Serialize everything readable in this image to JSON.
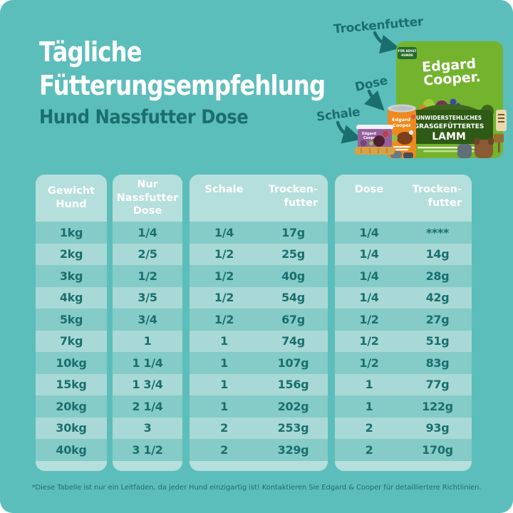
{
  "page": {
    "title_line1": "Tägliche",
    "title_line2": "Fütterungsempfehlung",
    "subtitle": "Hund Nassfutter Dose",
    "footnote": "*Diese Tabelle ist nur ein Leitfaden, da jeder Hund einzigartig ist! Kontaktieren Sie Edgard & Cooper für detailliertere Richtlinien.",
    "colors": {
      "background": "#5cbeba",
      "panel": "#b5dfdc",
      "row_dark": "#85cbc7",
      "row_light": "#a8d9d6",
      "ink": "#1a6f6e",
      "bag_green": "#74b32e",
      "can_orange": "#ee8a1e",
      "tray_purple": "#96609f",
      "tray_gold": "#d7a243"
    }
  },
  "product_callouts": {
    "dry_label": "Trockenfutter",
    "can_label": "Dose",
    "tray_label": "Schale"
  },
  "bag": {
    "badge_line1": "FÜR ADULT",
    "badge_line2": "HUNDE",
    "brand_line1": "Edgard",
    "brand_line2": "Cooper.",
    "claim_line1": "UNWIDERSTEHLICHES",
    "claim_line2": "GRASGEFÜTTERTES",
    "claim_line3": "LAMM"
  },
  "can": {
    "brand_line1": "Edgard",
    "brand_line2": "Cooper"
  },
  "tray": {
    "brand_line1": "Edgard",
    "brand_line2": "Cooper"
  },
  "table": {
    "group_headers": {
      "weight": "Gewicht\nHund",
      "wet_only": "Nur\nNassfutter\nDose",
      "tray": "Schale",
      "tray_dry": "Trocken-\nfutter",
      "can": "Dose",
      "can_dry": "Trocken-\nfutter"
    },
    "rows": [
      {
        "weight": "1kg",
        "wet_only": "1/4",
        "tray": "1/4",
        "tray_dry": "17g",
        "can": "1/4",
        "can_dry": "****"
      },
      {
        "weight": "2kg",
        "wet_only": "2/5",
        "tray": "1/2",
        "tray_dry": "25g",
        "can": "1/4",
        "can_dry": "14g"
      },
      {
        "weight": "3kg",
        "wet_only": "1/2",
        "tray": "1/2",
        "tray_dry": "40g",
        "can": "1/4",
        "can_dry": "28g"
      },
      {
        "weight": "4kg",
        "wet_only": "3/5",
        "tray": "1/2",
        "tray_dry": "54g",
        "can": "1/4",
        "can_dry": "42g"
      },
      {
        "weight": "5kg",
        "wet_only": "3/4",
        "tray": "1/2",
        "tray_dry": "67g",
        "can": "1/2",
        "can_dry": "27g"
      },
      {
        "weight": "7kg",
        "wet_only": "1",
        "tray": "1",
        "tray_dry": "74g",
        "can": "1/2",
        "can_dry": "51g"
      },
      {
        "weight": "10kg",
        "wet_only": "1 1/4",
        "tray": "1",
        "tray_dry": "107g",
        "can": "1/2",
        "can_dry": "83g"
      },
      {
        "weight": "15kg",
        "wet_only": "1 3/4",
        "tray": "1",
        "tray_dry": "156g",
        "can": "1",
        "can_dry": "77g"
      },
      {
        "weight": "20kg",
        "wet_only": "2 1/4",
        "tray": "1",
        "tray_dry": "202g",
        "can": "1",
        "can_dry": "122g"
      },
      {
        "weight": "30kg",
        "wet_only": "3",
        "tray": "2",
        "tray_dry": "253g",
        "can": "2",
        "can_dry": "93g"
      },
      {
        "weight": "40kg",
        "wet_only": "3 1/2",
        "tray": "2",
        "tray_dry": "329g",
        "can": "2",
        "can_dry": "170g"
      }
    ]
  },
  "chart_data": {
    "type": "table",
    "title": "Tägliche Fütterungsempfehlung",
    "subtitle": "Hund Nassfutter Dose",
    "columns": [
      "Gewicht Hund",
      "Nur Nassfutter Dose",
      "Schale",
      "Trocken-futter",
      "Dose",
      "Trocken-futter"
    ],
    "rows": [
      [
        "1kg",
        "1/4",
        "1/4",
        "17g",
        "1/4",
        "****"
      ],
      [
        "2kg",
        "2/5",
        "1/2",
        "25g",
        "1/4",
        "14g"
      ],
      [
        "3kg",
        "1/2",
        "1/2",
        "40g",
        "1/4",
        "28g"
      ],
      [
        "4kg",
        "3/5",
        "1/2",
        "54g",
        "1/4",
        "42g"
      ],
      [
        "5kg",
        "3/4",
        "1/2",
        "67g",
        "1/2",
        "27g"
      ],
      [
        "7kg",
        "1",
        "1",
        "74g",
        "1/2",
        "51g"
      ],
      [
        "10kg",
        "1 1/4",
        "1",
        "107g",
        "1/2",
        "83g"
      ],
      [
        "15kg",
        "1 3/4",
        "1",
        "156g",
        "1",
        "77g"
      ],
      [
        "20kg",
        "2 1/4",
        "1",
        "202g",
        "1",
        "122g"
      ],
      [
        "30kg",
        "3",
        "2",
        "253g",
        "2",
        "93g"
      ],
      [
        "40kg",
        "3 1/2",
        "2",
        "329g",
        "2",
        "170g"
      ]
    ]
  }
}
